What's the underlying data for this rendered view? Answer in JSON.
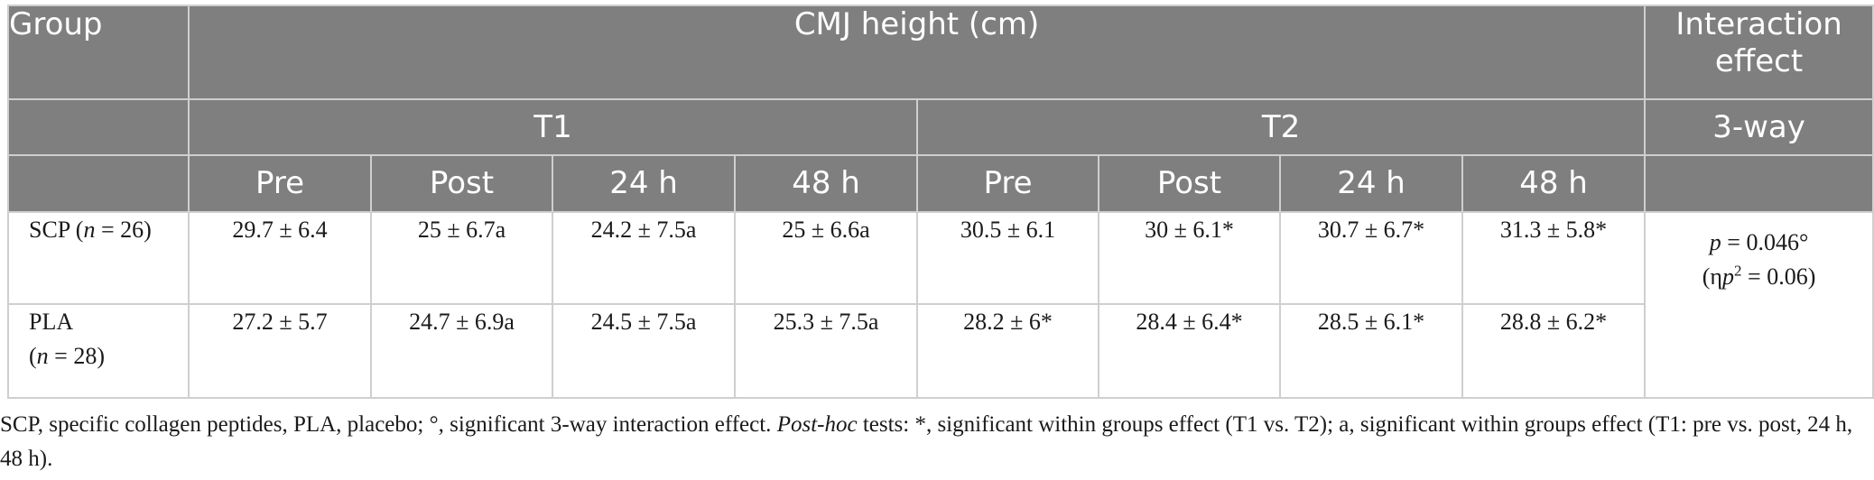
{
  "table": {
    "header": {
      "group": "Group",
      "measure": "CMJ height (cm)",
      "interaction": "Interaction effect",
      "t1": "T1",
      "t2": "T2",
      "three_way": "3-way",
      "timepoints": [
        "Pre",
        "Post",
        "24 h",
        "48 h",
        "Pre",
        "Post",
        "24 h",
        "48 h"
      ]
    },
    "rows": [
      {
        "group_name": "SCP",
        "n_label": "n",
        "n_value": " = 26)",
        "cells": [
          "29.7 ± 6.4",
          "25 ± 6.7a",
          "24.2 ± 7.5a",
          "25 ± 6.6a",
          "30.5 ± 6.1",
          "30 ± 6.1*",
          "30.7 ± 6.7*",
          "31.3 ± 5.8*"
        ]
      },
      {
        "group_name": "PLA",
        "n_label": "n",
        "n_value": " = 28)",
        "cells": [
          "27.2 ± 5.7",
          "24.7 ± 6.9a",
          "24.5 ± 7.5a",
          "25.3 ± 7.5a",
          "28.2 ± 6*",
          "28.4 ± 6.4*",
          "28.5 ± 6.1*",
          "28.8 ± 6.2*"
        ]
      }
    ],
    "interaction": {
      "p_label": "p",
      "p_value": " = 0.046°",
      "eta_prefix": "(η",
      "eta_p": "p",
      "eta_sup": "2",
      "eta_value": " = 0.06)"
    }
  },
  "footnote": {
    "part1": "SCP, specific collagen peptides, PLA, placebo; °, significant 3-way interaction effect. ",
    "posthoc": "Post-hoc",
    "part2": " tests: *, significant within groups effect (T1 vs. T2); a, significant within groups effect (T1: pre vs. post, 24 h, 48 h)."
  }
}
